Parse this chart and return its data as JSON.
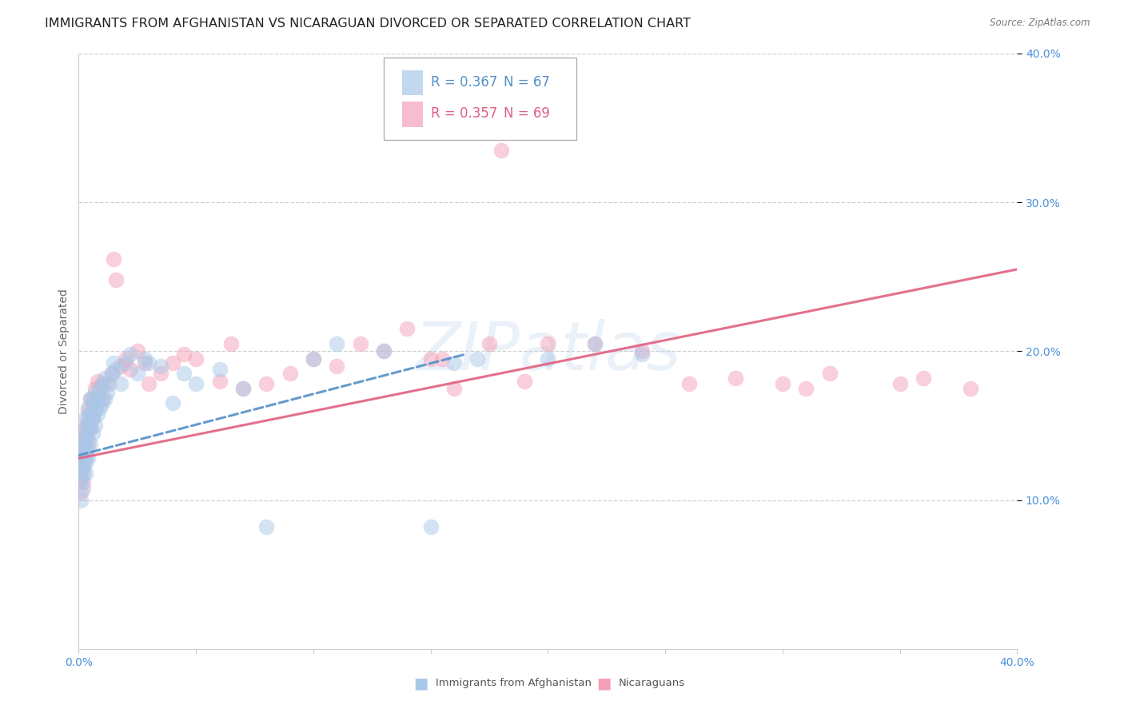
{
  "title": "IMMIGRANTS FROM AFGHANISTAN VS NICARAGUAN DIVORCED OR SEPARATED CORRELATION CHART",
  "source": "Source: ZipAtlas.com",
  "ylabel": "Divorced or Separated",
  "xlim": [
    0.0,
    0.4
  ],
  "ylim": [
    0.0,
    0.4
  ],
  "ytick_positions": [
    0.1,
    0.2,
    0.3,
    0.4
  ],
  "ytick_labels": [
    "10.0%",
    "20.0%",
    "30.0%",
    "40.0%"
  ],
  "color_blue": "#a8c8e8",
  "color_pink": "#f4a0b8",
  "color_blue_line": "#5590c8",
  "color_pink_line": "#e06080",
  "color_tick_label": "#4a90d9",
  "watermark_text": "ZIPatlas",
  "grid_color": "#d0d0d0",
  "background_color": "#ffffff",
  "title_fontsize": 11.5,
  "axis_label_fontsize": 10,
  "tick_label_fontsize": 10,
  "legend_fontsize": 12,
  "blue_scatter_x": [
    0.001,
    0.001,
    0.001,
    0.001,
    0.002,
    0.002,
    0.002,
    0.002,
    0.002,
    0.002,
    0.003,
    0.003,
    0.003,
    0.003,
    0.003,
    0.003,
    0.003,
    0.004,
    0.004,
    0.004,
    0.004,
    0.004,
    0.005,
    0.005,
    0.005,
    0.005,
    0.006,
    0.006,
    0.006,
    0.007,
    0.007,
    0.007,
    0.008,
    0.008,
    0.009,
    0.009,
    0.01,
    0.01,
    0.011,
    0.011,
    0.012,
    0.013,
    0.014,
    0.015,
    0.016,
    0.018,
    0.02,
    0.022,
    0.025,
    0.028,
    0.03,
    0.035,
    0.04,
    0.045,
    0.05,
    0.06,
    0.07,
    0.08,
    0.1,
    0.11,
    0.13,
    0.15,
    0.16,
    0.17,
    0.2,
    0.22,
    0.24
  ],
  "blue_scatter_y": [
    0.1,
    0.112,
    0.12,
    0.128,
    0.108,
    0.118,
    0.125,
    0.132,
    0.138,
    0.142,
    0.118,
    0.125,
    0.13,
    0.138,
    0.143,
    0.148,
    0.155,
    0.128,
    0.135,
    0.148,
    0.155,
    0.162,
    0.138,
    0.148,
    0.158,
    0.168,
    0.145,
    0.155,
    0.168,
    0.15,
    0.16,
    0.172,
    0.158,
    0.168,
    0.162,
    0.175,
    0.165,
    0.178,
    0.168,
    0.182,
    0.172,
    0.178,
    0.185,
    0.192,
    0.188,
    0.178,
    0.192,
    0.198,
    0.185,
    0.195,
    0.192,
    0.19,
    0.165,
    0.185,
    0.178,
    0.188,
    0.175,
    0.082,
    0.195,
    0.205,
    0.2,
    0.082,
    0.192,
    0.195,
    0.195,
    0.205,
    0.198
  ],
  "pink_scatter_x": [
    0.001,
    0.001,
    0.001,
    0.001,
    0.002,
    0.002,
    0.002,
    0.002,
    0.002,
    0.003,
    0.003,
    0.003,
    0.003,
    0.004,
    0.004,
    0.004,
    0.005,
    0.005,
    0.005,
    0.006,
    0.006,
    0.007,
    0.007,
    0.008,
    0.008,
    0.009,
    0.01,
    0.01,
    0.012,
    0.014,
    0.015,
    0.016,
    0.018,
    0.02,
    0.022,
    0.025,
    0.028,
    0.03,
    0.035,
    0.04,
    0.045,
    0.05,
    0.06,
    0.065,
    0.07,
    0.08,
    0.09,
    0.1,
    0.11,
    0.12,
    0.13,
    0.14,
    0.15,
    0.155,
    0.16,
    0.175,
    0.18,
    0.19,
    0.2,
    0.22,
    0.24,
    0.26,
    0.28,
    0.3,
    0.31,
    0.32,
    0.35,
    0.36,
    0.38
  ],
  "pink_scatter_y": [
    0.105,
    0.115,
    0.122,
    0.132,
    0.112,
    0.122,
    0.13,
    0.138,
    0.145,
    0.128,
    0.135,
    0.142,
    0.15,
    0.14,
    0.15,
    0.16,
    0.148,
    0.158,
    0.168,
    0.155,
    0.165,
    0.162,
    0.175,
    0.168,
    0.18,
    0.175,
    0.168,
    0.178,
    0.178,
    0.185,
    0.262,
    0.248,
    0.19,
    0.195,
    0.188,
    0.2,
    0.192,
    0.178,
    0.185,
    0.192,
    0.198,
    0.195,
    0.18,
    0.205,
    0.175,
    0.178,
    0.185,
    0.195,
    0.19,
    0.205,
    0.2,
    0.215,
    0.195,
    0.195,
    0.175,
    0.205,
    0.335,
    0.18,
    0.205,
    0.205,
    0.2,
    0.178,
    0.182,
    0.178,
    0.175,
    0.185,
    0.178,
    0.182,
    0.175
  ],
  "blue_line_x0": 0.0,
  "blue_line_x1": 0.165,
  "blue_line_y0": 0.13,
  "blue_line_y1": 0.198,
  "pink_line_x0": 0.0,
  "pink_line_x1": 0.4,
  "pink_line_y0": 0.128,
  "pink_line_y1": 0.255
}
